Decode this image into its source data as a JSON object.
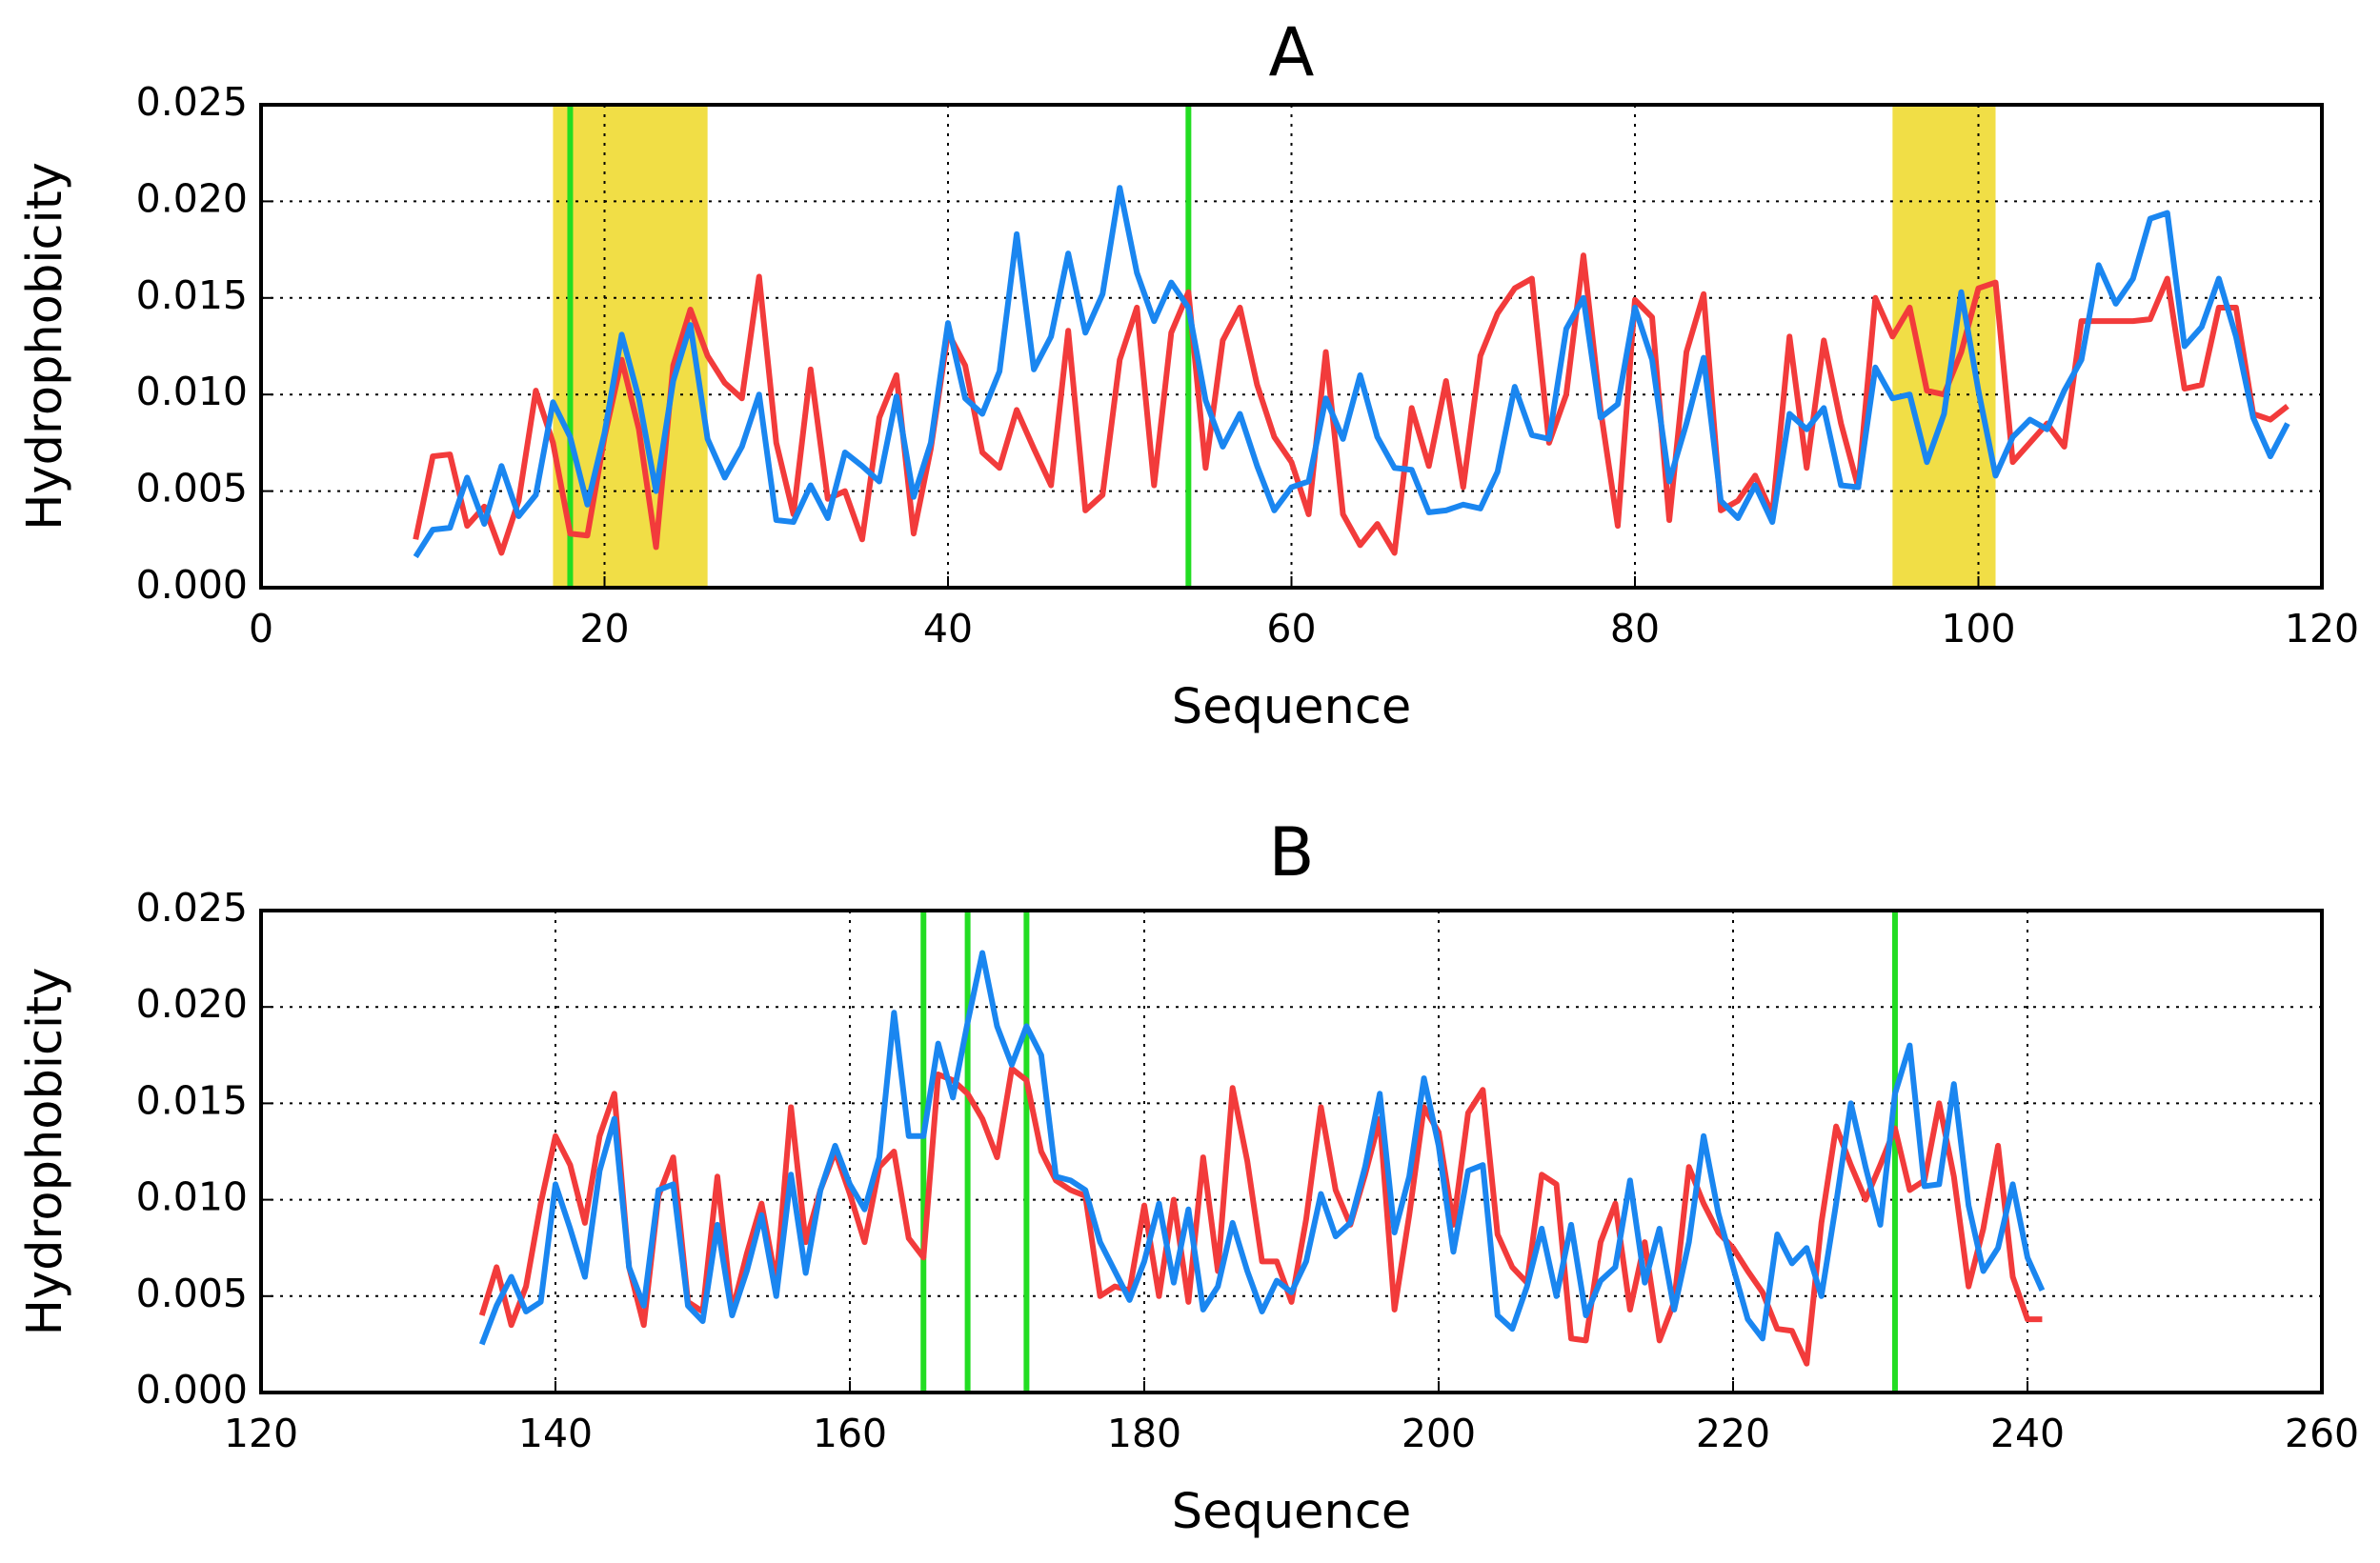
{
  "chart_data": [
    {
      "type": "line",
      "title": "A",
      "xlabel": "Sequence",
      "ylabel": "Hydrophobicity",
      "x": [
        9,
        10,
        11,
        12,
        13,
        14,
        15,
        16,
        17,
        18,
        19,
        20,
        21,
        22,
        23,
        24,
        25,
        26,
        27,
        28,
        29,
        30,
        31,
        32,
        33,
        34,
        35,
        36,
        37,
        38,
        39,
        40,
        41,
        42,
        43,
        44,
        45,
        46,
        47,
        48,
        49,
        50,
        51,
        52,
        53,
        54,
        55,
        56,
        57,
        58,
        59,
        60,
        61,
        62,
        63,
        64,
        65,
        66,
        67,
        68,
        69,
        70,
        71,
        72,
        73,
        74,
        75,
        76,
        77,
        78,
        79,
        80,
        81,
        82,
        83,
        84,
        85,
        86,
        87,
        88,
        89,
        90,
        91,
        92,
        93,
        94,
        95,
        96,
        97,
        98,
        99,
        100,
        101,
        102,
        103,
        104,
        105,
        106,
        107,
        108,
        109,
        110,
        111,
        112,
        113,
        114,
        115,
        116,
        117,
        118
      ],
      "series": [
        {
          "color": "#f23b3b",
          "values": [
            0.0025,
            0.0068,
            0.0069,
            0.0032,
            0.0042,
            0.0018,
            0.0045,
            0.0102,
            0.0075,
            0.0028,
            0.0027,
            0.0078,
            0.0118,
            0.0082,
            0.0021,
            0.0115,
            0.0144,
            0.012,
            0.0106,
            0.0098,
            0.0161,
            0.0075,
            0.0038,
            0.0113,
            0.0046,
            0.005,
            0.0025,
            0.0088,
            0.011,
            0.0028,
            0.0072,
            0.0132,
            0.0115,
            0.007,
            0.0062,
            0.0092,
            0.0072,
            0.0053,
            0.0133,
            0.004,
            0.0048,
            0.0118,
            0.0145,
            0.0053,
            0.0132,
            0.0153,
            0.0062,
            0.0128,
            0.0145,
            0.0105,
            0.0078,
            0.0065,
            0.0038,
            0.0122,
            0.0038,
            0.0022,
            0.0033,
            0.0018,
            0.0093,
            0.0063,
            0.0107,
            0.0052,
            0.012,
            0.0142,
            0.0155,
            0.016,
            0.0075,
            0.01,
            0.0172,
            0.0092,
            0.0032,
            0.0149,
            0.014,
            0.0035,
            0.0122,
            0.0152,
            0.004,
            0.0045,
            0.0058,
            0.0038,
            0.013,
            0.0062,
            0.0128,
            0.0085,
            0.0052,
            0.015,
            0.013,
            0.0145,
            0.0102,
            0.01,
            0.0122,
            0.0155,
            0.0158,
            0.0065,
            0.0075,
            0.0085,
            0.0073,
            0.0138,
            0.0138,
            0.0138,
            0.0138,
            0.0139,
            0.016,
            0.0103,
            0.0105,
            0.0145,
            0.0145,
            0.009,
            0.0087,
            0.0094
          ]
        },
        {
          "color": "#1a86f0",
          "values": [
            0.0016,
            0.003,
            0.0031,
            0.0057,
            0.0033,
            0.0063,
            0.0037,
            0.0048,
            0.0096,
            0.0078,
            0.0043,
            0.008,
            0.0131,
            0.0098,
            0.005,
            0.0107,
            0.0136,
            0.0077,
            0.0057,
            0.0073,
            0.01,
            0.0035,
            0.0034,
            0.0053,
            0.0036,
            0.007,
            0.0063,
            0.0055,
            0.0099,
            0.0047,
            0.0075,
            0.0137,
            0.0098,
            0.009,
            0.0112,
            0.0183,
            0.0113,
            0.013,
            0.0173,
            0.0132,
            0.0152,
            0.0207,
            0.0163,
            0.0138,
            0.0158,
            0.0145,
            0.0097,
            0.0073,
            0.009,
            0.0063,
            0.004,
            0.0052,
            0.0055,
            0.0098,
            0.0077,
            0.011,
            0.0078,
            0.0062,
            0.0061,
            0.0039,
            0.004,
            0.0043,
            0.0041,
            0.006,
            0.0104,
            0.0079,
            0.0077,
            0.0134,
            0.015,
            0.0088,
            0.0095,
            0.0145,
            0.0118,
            0.0055,
            0.0085,
            0.0119,
            0.0045,
            0.0036,
            0.0053,
            0.0034,
            0.009,
            0.0082,
            0.0093,
            0.0053,
            0.0052,
            0.0114,
            0.0098,
            0.01,
            0.0065,
            0.009,
            0.0153,
            0.0102,
            0.0058,
            0.0078,
            0.0087,
            0.0082,
            0.0102,
            0.0118,
            0.0167,
            0.0147,
            0.016,
            0.0191,
            0.0194,
            0.0125,
            0.0135,
            0.016,
            0.013,
            0.0088,
            0.0068,
            0.0085
          ]
        }
      ],
      "xlim": [
        0,
        120
      ],
      "xticks": [
        0,
        20,
        40,
        60,
        80,
        100,
        120
      ],
      "ylim": [
        0,
        0.025
      ],
      "yticks": [
        {
          "value": 0,
          "label": "0.000"
        },
        {
          "value": 0.005,
          "label": "0.005"
        },
        {
          "value": 0.01,
          "label": "0.010"
        },
        {
          "value": 0.015,
          "label": "0.015"
        },
        {
          "value": 0.02,
          "label": "0.020"
        },
        {
          "value": 0.025,
          "label": "0.025"
        }
      ],
      "grid": true,
      "vlines": [
        18,
        54
      ],
      "vline_color": "#22dd22",
      "spans": [
        [
          17,
          26
        ],
        [
          95,
          101
        ]
      ],
      "span_color": "#f0dc3c"
    },
    {
      "type": "line",
      "title": "B",
      "xlabel": "Sequence",
      "ylabel": "Hydrophobicity",
      "x": [
        135,
        136,
        137,
        138,
        139,
        140,
        141,
        142,
        143,
        144,
        145,
        146,
        147,
        148,
        149,
        150,
        151,
        152,
        153,
        154,
        155,
        156,
        157,
        158,
        159,
        160,
        161,
        162,
        163,
        164,
        165,
        166,
        167,
        168,
        169,
        170,
        171,
        172,
        173,
        174,
        175,
        176,
        177,
        178,
        179,
        180,
        181,
        182,
        183,
        184,
        185,
        186,
        187,
        188,
        189,
        190,
        191,
        192,
        193,
        194,
        195,
        196,
        197,
        198,
        199,
        200,
        201,
        202,
        203,
        204,
        205,
        206,
        207,
        208,
        209,
        210,
        211,
        212,
        213,
        214,
        215,
        216,
        217,
        218,
        219,
        220,
        221,
        222,
        223,
        224,
        225,
        226,
        227,
        228,
        229,
        230,
        231,
        232,
        233,
        234,
        235,
        236,
        237,
        238,
        239,
        240,
        241
      ],
      "series": [
        {
          "color": "#f23b3b",
          "values": [
            0.004,
            0.0065,
            0.0035,
            0.0055,
            0.0098,
            0.0133,
            0.0118,
            0.0088,
            0.0133,
            0.0155,
            0.0065,
            0.0035,
            0.0102,
            0.0122,
            0.0047,
            0.0042,
            0.0112,
            0.0042,
            0.0072,
            0.0098,
            0.0057,
            0.0148,
            0.0078,
            0.0105,
            0.0125,
            0.0103,
            0.0078,
            0.0117,
            0.0125,
            0.008,
            0.007,
            0.0165,
            0.0162,
            0.0155,
            0.0142,
            0.0122,
            0.0168,
            0.0162,
            0.0125,
            0.011,
            0.0105,
            0.0102,
            0.005,
            0.0055,
            0.0053,
            0.0097,
            0.005,
            0.01,
            0.0047,
            0.0122,
            0.0063,
            0.0158,
            0.012,
            0.0068,
            0.0068,
            0.0047,
            0.009,
            0.0148,
            0.0105,
            0.0087,
            0.0113,
            0.0142,
            0.0043,
            0.0092,
            0.0148,
            0.0135,
            0.0087,
            0.0145,
            0.0157,
            0.0082,
            0.0065,
            0.0057,
            0.0113,
            0.0108,
            0.0028,
            0.0027,
            0.0078,
            0.0098,
            0.0043,
            0.0078,
            0.0027,
            0.0047,
            0.0117,
            0.0098,
            0.0083,
            0.0075,
            0.0063,
            0.0052,
            0.0033,
            0.0032,
            0.0015,
            0.0088,
            0.0138,
            0.0118,
            0.01,
            0.0118,
            0.0137,
            0.0105,
            0.011,
            0.015,
            0.0112,
            0.0055,
            0.0085,
            0.0128,
            0.006,
            0.0038,
            0.0038
          ]
        },
        {
          "color": "#1a86f0",
          "values": [
            0.0025,
            0.0045,
            0.006,
            0.0042,
            0.0047,
            0.0108,
            0.0085,
            0.006,
            0.0115,
            0.0142,
            0.0065,
            0.0045,
            0.0105,
            0.0108,
            0.0045,
            0.0037,
            0.0087,
            0.004,
            0.0063,
            0.0092,
            0.005,
            0.0113,
            0.0062,
            0.0105,
            0.0128,
            0.0108,
            0.0095,
            0.0122,
            0.0197,
            0.0133,
            0.0133,
            0.0181,
            0.0153,
            0.0192,
            0.0228,
            0.019,
            0.017,
            0.019,
            0.0175,
            0.0112,
            0.011,
            0.0105,
            0.0078,
            0.0063,
            0.0048,
            0.0068,
            0.0098,
            0.0057,
            0.0095,
            0.0043,
            0.0055,
            0.0088,
            0.0063,
            0.0042,
            0.0058,
            0.0052,
            0.0068,
            0.0103,
            0.0081,
            0.0088,
            0.0117,
            0.0155,
            0.0083,
            0.0112,
            0.0163,
            0.0128,
            0.0073,
            0.0115,
            0.0118,
            0.004,
            0.0033,
            0.0055,
            0.0085,
            0.005,
            0.0087,
            0.004,
            0.0058,
            0.0065,
            0.011,
            0.0057,
            0.0085,
            0.0043,
            0.0078,
            0.0133,
            0.0093,
            0.0065,
            0.0038,
            0.0028,
            0.0082,
            0.0067,
            0.0075,
            0.005,
            0.0098,
            0.015,
            0.0117,
            0.0087,
            0.0155,
            0.018,
            0.0107,
            0.0108,
            0.016,
            0.0097,
            0.0063,
            0.0075,
            0.0108,
            0.007,
            0.0053
          ]
        }
      ],
      "xlim": [
        120,
        260
      ],
      "xticks": [
        120,
        140,
        160,
        180,
        200,
        220,
        240,
        260
      ],
      "ylim": [
        0,
        0.025
      ],
      "yticks": [
        {
          "value": 0,
          "label": "0.000"
        },
        {
          "value": 0.005,
          "label": "0.005"
        },
        {
          "value": 0.01,
          "label": "0.010"
        },
        {
          "value": 0.015,
          "label": "0.015"
        },
        {
          "value": 0.02,
          "label": "0.020"
        },
        {
          "value": 0.025,
          "label": "0.025"
        }
      ],
      "grid": true,
      "vlines": [
        165,
        168,
        172,
        231
      ],
      "vline_color": "#22dd22",
      "spans": [],
      "span_color": "#f0dc3c"
    }
  ]
}
